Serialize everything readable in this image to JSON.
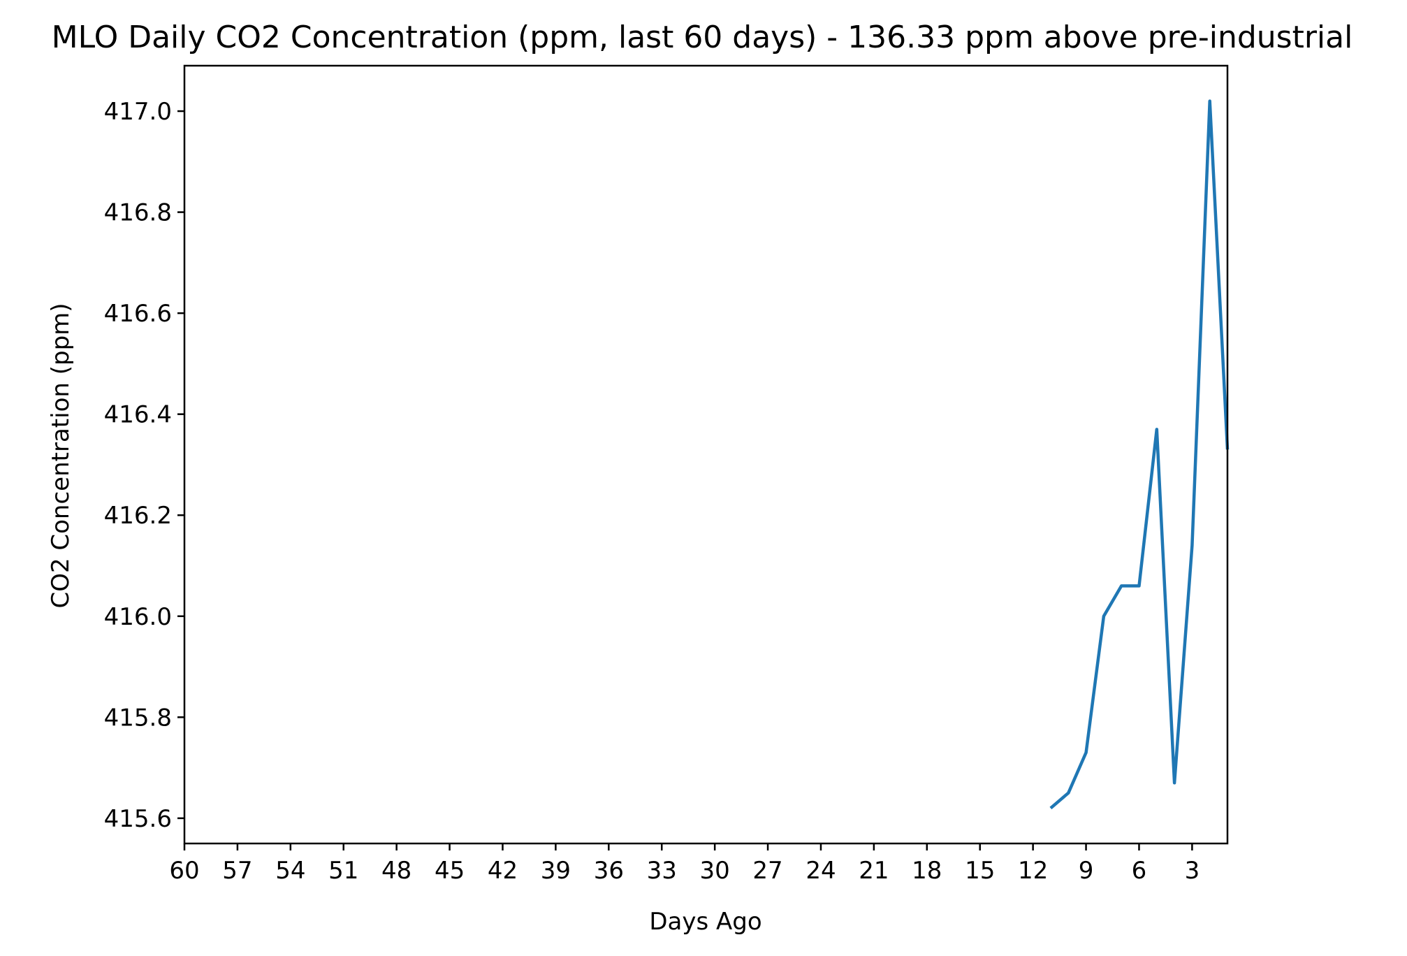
{
  "chart_data": {
    "type": "line",
    "title": "MLO Daily CO2 Concentration (ppm, last 60 days) - 136.33 ppm above pre-industrial",
    "xlabel": "Days Ago",
    "ylabel": "CO2 Concentration (ppm)",
    "x_reversed": true,
    "xlim": [
      60,
      1
    ],
    "ylim": [
      415.55,
      417.09
    ],
    "x_ticks": [
      60,
      57,
      54,
      51,
      48,
      45,
      42,
      39,
      36,
      33,
      30,
      27,
      24,
      21,
      18,
      15,
      12,
      9,
      6,
      3
    ],
    "y_ticks": [
      415.6,
      415.8,
      416.0,
      416.2,
      416.4,
      416.6,
      416.8,
      417.0
    ],
    "y_tick_labels": [
      "415.6",
      "415.8",
      "416.0",
      "416.2",
      "416.4",
      "416.6",
      "416.8",
      "417.0"
    ],
    "grid": false,
    "series": [
      {
        "color": "#1f77b4",
        "x": [
          11,
          10,
          9,
          8,
          7,
          6,
          5,
          4,
          3,
          2,
          1
        ],
        "y": [
          415.62,
          415.65,
          415.73,
          416.0,
          416.06,
          416.06,
          416.37,
          415.67,
          416.14,
          417.02,
          416.33
        ]
      }
    ]
  }
}
